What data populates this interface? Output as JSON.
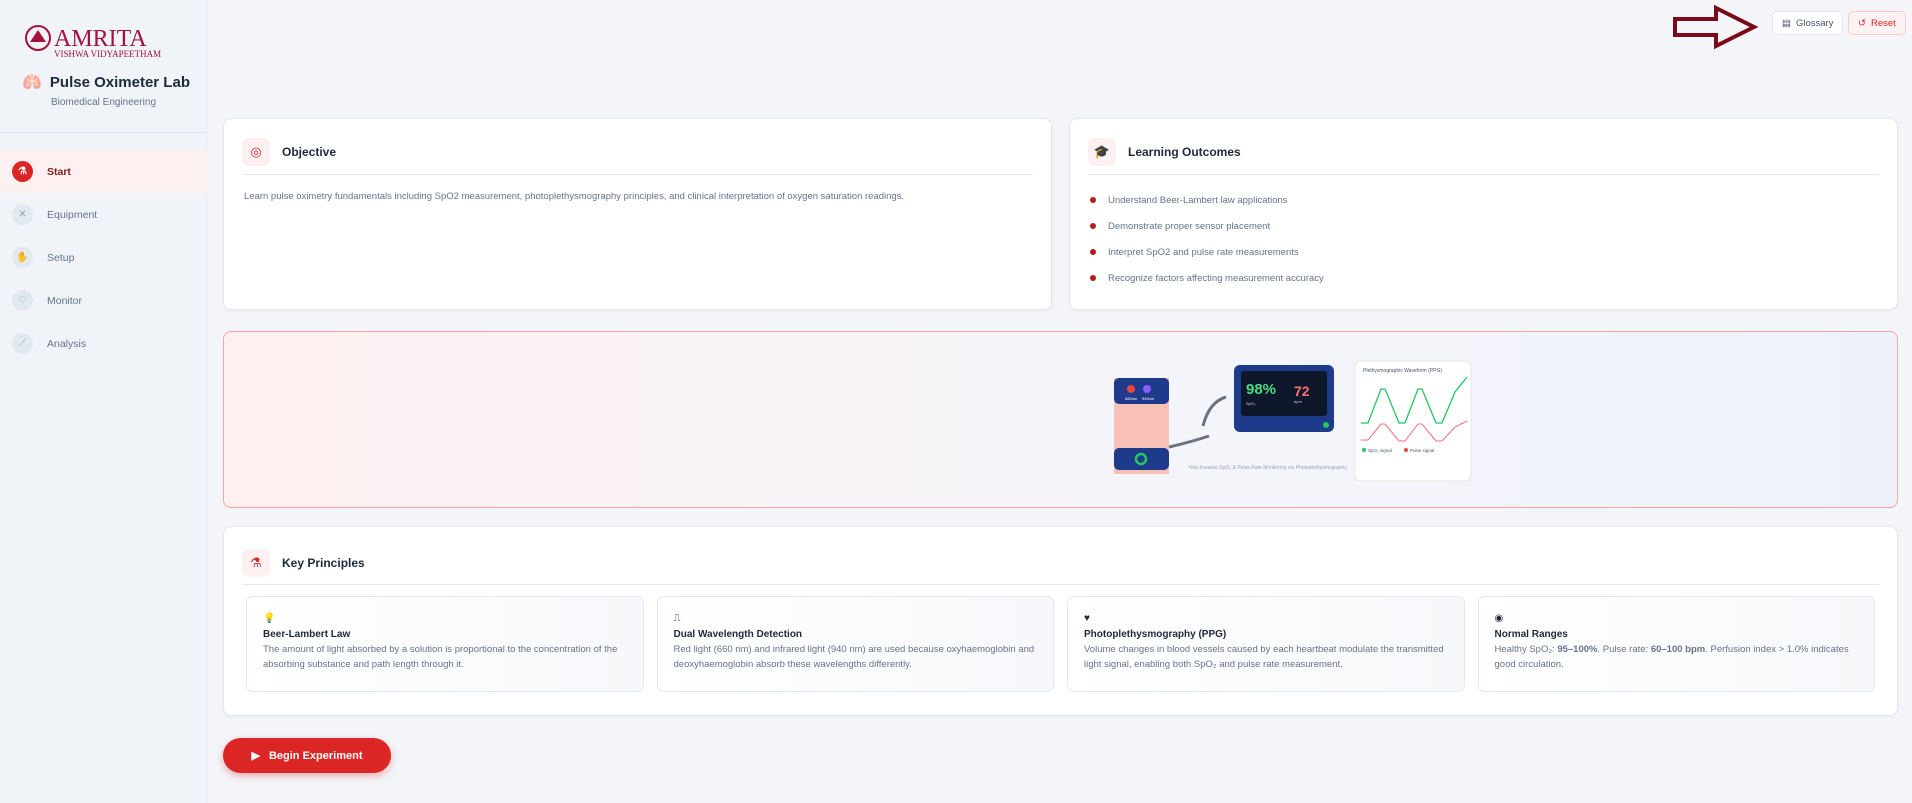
{
  "sidebar": {
    "logo_text": "AMRITA",
    "logo_subtext": "VISHWA VIDYAPEETHAM",
    "title": "Pulse Oximeter Lab",
    "subtitle": "Biomedical Engineering",
    "items": [
      {
        "label": "Start",
        "icon": "flask-icon",
        "active": true
      },
      {
        "label": "Equipment",
        "icon": "tools-icon"
      },
      {
        "label": "Setup",
        "icon": "hand-icon"
      },
      {
        "label": "Monitor",
        "icon": "heart-pulse-icon"
      },
      {
        "label": "Analysis",
        "icon": "chart-line-icon"
      }
    ]
  },
  "header": {
    "glossary": "Glossary",
    "reset": "Reset"
  },
  "objective": {
    "title": "Objective",
    "text": "Learn pulse oximetry fundamentals including SpO2 measurement, photoplethysmography principles, and clinical interpretation of oxygen saturation readings."
  },
  "outcomes": {
    "title": "Learning Outcomes",
    "items": [
      "Understand Beer-Lambert law applications",
      "Demonstrate proper sensor placement",
      "Interpret SpO2 and pulse rate measurements",
      "Recognize factors affecting measurement accuracy"
    ]
  },
  "illustration": {
    "led1": "660nm",
    "led2": "940nm",
    "spo2": "98%",
    "spo2_label": "SpO₂",
    "pr": "72",
    "pr_label": "bpm",
    "wave_title": "Plethysmographic Waveform (PPG)",
    "legend_spo2": "SpO₂ signal",
    "legend_pulse": "Pulse signal",
    "caption": "Non-invasive SpO₂ & Pulse Rate Monitoring via Photoplethysmography"
  },
  "principles": {
    "title": "Key Principles",
    "cards": [
      {
        "title": "Beer-Lambert Law",
        "text": "The amount of light absorbed by a solution is proportional to the concentration of the absorbing substance and path length through it.",
        "icon": "lightbulb-icon"
      },
      {
        "title": "Dual Wavelength Detection",
        "text": "Red light (660 nm) and infrared light (940 nm) are used because oxyhaemoglobin and deoxyhaemoglobin absorb these wavelengths differently.",
        "icon": "wave-square-icon"
      },
      {
        "title": "Photoplethysmography (PPG)",
        "text": "Volume changes in blood vessels caused by each heartbeat modulate the transmitted light signal, enabling both SpO₂ and pulse rate measurement.",
        "icon": "heart-pulse-icon"
      },
      {
        "title": "Normal Ranges",
        "text_a": "Healthy SpO₂: ",
        "bold_a": "95–100%",
        "text_b": ". Pulse rate: ",
        "bold_b": "60–100 bpm",
        "text_c": ". Perfusion index > 1.0% indicates good circulation.",
        "icon": "gauge-icon"
      }
    ]
  },
  "begin": "Begin Experiment",
  "colors": {
    "accent": "#dc2626",
    "brand": "#a3123a",
    "annotation_arrow": "#7a0a1a"
  }
}
